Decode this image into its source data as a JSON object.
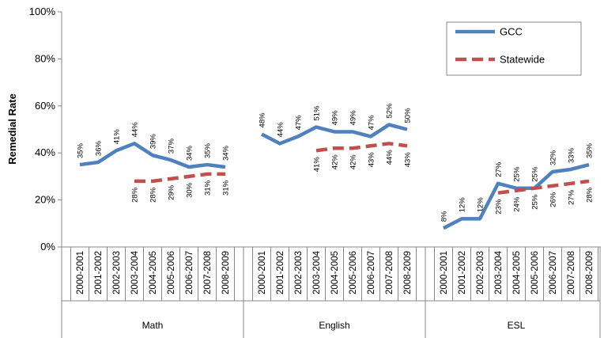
{
  "chart_data": {
    "type": "line",
    "y_label": "Remedial Rate",
    "ylim": [
      0,
      100
    ],
    "yticks": [
      {
        "value": 0,
        "label": "0%"
      },
      {
        "value": 20,
        "label": "20%"
      },
      {
        "value": 40,
        "label": "40%"
      },
      {
        "value": 60,
        "label": "60%"
      },
      {
        "value": 80,
        "label": "80%"
      },
      {
        "value": 100,
        "label": "100%"
      }
    ],
    "grid": false,
    "legend": "top-right",
    "groups": [
      {
        "name": "Math",
        "categories": [
          "2000-2001",
          "2001-2002",
          "2002-2003",
          "2003-2004",
          "2004-2005",
          "2005-2006",
          "2006-2007",
          "2007-2008",
          "2008-2009"
        ]
      },
      {
        "name": "English",
        "categories": [
          "2000-2001",
          "2001-2002",
          "2002-2003",
          "2003-2004",
          "2004-2005",
          "2005-2006",
          "2006-2007",
          "2007-2008",
          "2008-2009"
        ]
      },
      {
        "name": "ESL",
        "categories": [
          "2000-2001",
          "2001-2002",
          "2002-2003",
          "2003-2004",
          "2004-2005",
          "2005-2006",
          "2006-2007",
          "2007-2008",
          "2008-2009"
        ]
      }
    ],
    "series": [
      {
        "name": "GCC",
        "color": "#4f81bd",
        "dashed": false,
        "values": [
          [
            35,
            36,
            41,
            44,
            39,
            37,
            34,
            35,
            34
          ],
          [
            48,
            44,
            47,
            51,
            49,
            49,
            47,
            52,
            50
          ],
          [
            8,
            12,
            12,
            27,
            25,
            25,
            32,
            33,
            35
          ]
        ],
        "value_labels": [
          [
            "35%",
            "36%",
            "41%",
            "44%",
            "39%",
            "37%",
            "34%",
            "35%",
            "34%"
          ],
          [
            "48%",
            "44%",
            "47%",
            "51%",
            "49%",
            "49%",
            "47%",
            "52%",
            "50%"
          ],
          [
            "8%",
            "12%",
            "12%",
            "27%",
            "25%",
            "25%",
            "32%",
            "33%",
            "35%"
          ]
        ]
      },
      {
        "name": "Statewide",
        "color": "#c0504d",
        "dashed": true,
        "values": [
          [
            null,
            null,
            null,
            28,
            28,
            29,
            30,
            31,
            31
          ],
          [
            null,
            null,
            null,
            41,
            42,
            42,
            43,
            44,
            43
          ],
          [
            null,
            null,
            null,
            23,
            24,
            25,
            26,
            27,
            28
          ]
        ],
        "value_labels": [
          [
            null,
            null,
            null,
            "28%",
            "28%",
            "29%",
            "30%",
            "31%",
            "31%"
          ],
          [
            null,
            null,
            null,
            "41%",
            "42%",
            "42%",
            "43%",
            "44%",
            "43%"
          ],
          [
            null,
            null,
            null,
            "23%",
            "24%",
            "25%",
            "26%",
            "27%",
            "28%"
          ]
        ]
      }
    ]
  }
}
